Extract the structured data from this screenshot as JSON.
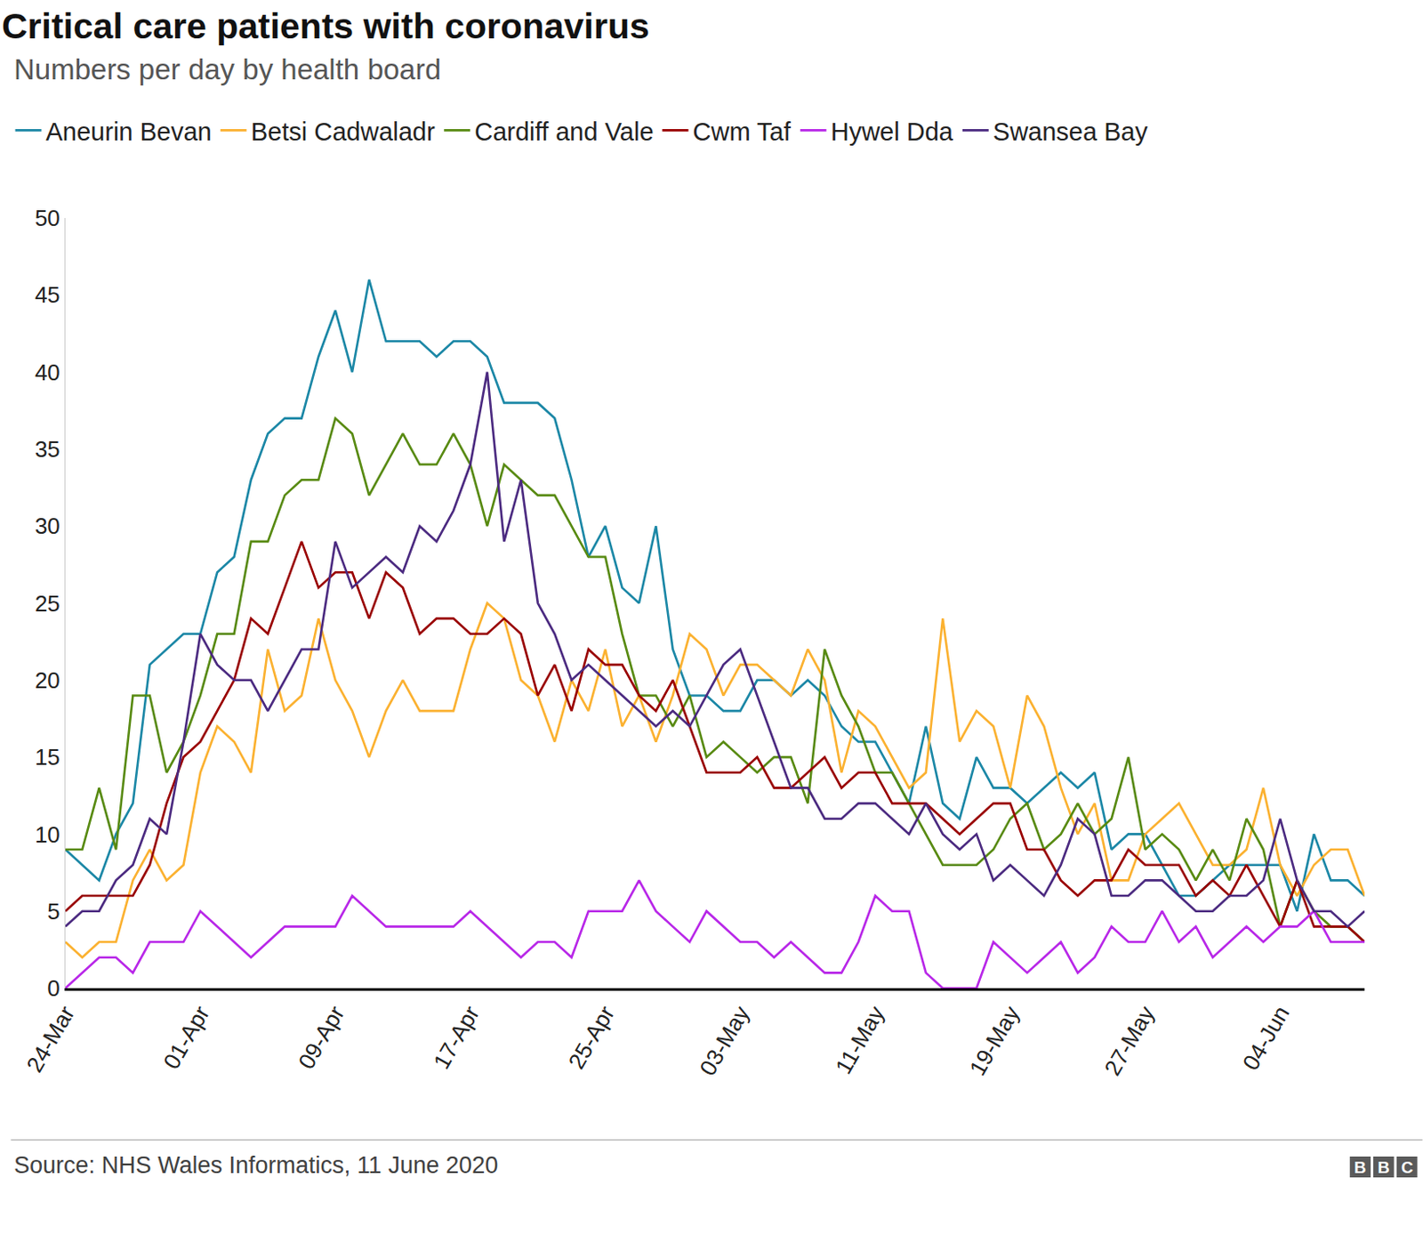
{
  "chart_data": {
    "type": "line",
    "title": "Critical care patients with coronavirus",
    "subtitle": "Numbers per day by health board",
    "source": "Source: NHS Wales Informatics, 11 June 2020",
    "logo": "BBC",
    "categories": [
      "24-Mar",
      null,
      null,
      null,
      null,
      null,
      null,
      null,
      "01-Apr",
      null,
      null,
      null,
      null,
      null,
      null,
      null,
      "09-Apr",
      null,
      null,
      null,
      null,
      null,
      null,
      null,
      "17-Apr",
      null,
      null,
      null,
      null,
      null,
      null,
      null,
      "25-Apr",
      null,
      null,
      null,
      null,
      null,
      null,
      null,
      "03-May",
      null,
      null,
      null,
      null,
      null,
      null,
      null,
      "11-May",
      null,
      null,
      null,
      null,
      null,
      null,
      null,
      "19-May",
      null,
      null,
      null,
      null,
      null,
      null,
      null,
      "27-May",
      null,
      null,
      null,
      null,
      null,
      null,
      null,
      "04-Jun",
      null,
      null,
      null,
      null,
      null
    ],
    "series": [
      {
        "name": "Aneurin Bevan",
        "color": "#1b87a6",
        "values": [
          9,
          8,
          7,
          10,
          12,
          21,
          22,
          23,
          23,
          27,
          28,
          33,
          36,
          37,
          37,
          41,
          44,
          40,
          46,
          42,
          42,
          42,
          41,
          42,
          42,
          41,
          38,
          38,
          38,
          37,
          33,
          28,
          30,
          26,
          25,
          30,
          22,
          19,
          19,
          18,
          18,
          20,
          20,
          19,
          20,
          19,
          17,
          16,
          16,
          14,
          12,
          17,
          12,
          11,
          15,
          13,
          13,
          12,
          13,
          14,
          13,
          14,
          9,
          10,
          10,
          8,
          6,
          6,
          7,
          8,
          8,
          8,
          8,
          5,
          10,
          7,
          7,
          6
        ]
      },
      {
        "name": "Betsi Cadwaladr",
        "color": "#fbb130",
        "values": [
          3,
          2,
          3,
          3,
          7,
          9,
          7,
          8,
          14,
          17,
          16,
          14,
          22,
          18,
          19,
          24,
          20,
          18,
          15,
          18,
          20,
          18,
          18,
          18,
          22,
          25,
          24,
          20,
          19,
          16,
          20,
          18,
          22,
          17,
          19,
          16,
          19,
          23,
          22,
          19,
          21,
          21,
          20,
          19,
          22,
          20,
          14,
          18,
          17,
          15,
          13,
          14,
          24,
          16,
          18,
          17,
          13,
          19,
          17,
          13,
          10,
          12,
          7,
          7,
          10,
          11,
          12,
          10,
          8,
          8,
          9,
          13,
          8,
          6,
          8,
          9,
          9,
          6
        ]
      },
      {
        "name": "Cardiff and Vale",
        "color": "#588a12",
        "values": [
          9,
          9,
          13,
          9,
          19,
          19,
          14,
          16,
          19,
          23,
          23,
          29,
          29,
          32,
          33,
          33,
          37,
          36,
          32,
          34,
          36,
          34,
          34,
          36,
          34,
          30,
          34,
          33,
          32,
          32,
          30,
          28,
          28,
          23,
          19,
          19,
          17,
          19,
          15,
          16,
          15,
          14,
          15,
          15,
          12,
          22,
          19,
          17,
          14,
          14,
          12,
          10,
          8,
          8,
          8,
          9,
          11,
          12,
          9,
          10,
          12,
          10,
          11,
          15,
          9,
          10,
          9,
          7,
          9,
          7,
          11,
          9,
          4,
          7,
          5,
          4,
          4,
          3
        ]
      },
      {
        "name": "Cwm Taf",
        "color": "#990000",
        "values": [
          5,
          6,
          6,
          6,
          6,
          8,
          12,
          15,
          16,
          18,
          20,
          24,
          23,
          26,
          29,
          26,
          27,
          27,
          24,
          27,
          26,
          23,
          24,
          24,
          23,
          23,
          24,
          23,
          19,
          21,
          18,
          22,
          21,
          21,
          19,
          18,
          20,
          17,
          14,
          14,
          14,
          15,
          13,
          13,
          14,
          15,
          13,
          14,
          14,
          12,
          12,
          12,
          11,
          10,
          11,
          12,
          12,
          9,
          9,
          7,
          6,
          7,
          7,
          9,
          8,
          8,
          8,
          6,
          7,
          6,
          8,
          6,
          4,
          7,
          4,
          4,
          4,
          3
        ]
      },
      {
        "name": "Hywel Dda",
        "color": "#b827e8",
        "values": [
          0,
          1,
          2,
          2,
          1,
          3,
          3,
          3,
          5,
          4,
          3,
          2,
          3,
          4,
          4,
          4,
          4,
          6,
          5,
          4,
          4,
          4,
          4,
          4,
          5,
          4,
          3,
          2,
          3,
          3,
          2,
          5,
          5,
          5,
          7,
          5,
          4,
          3,
          5,
          4,
          3,
          3,
          2,
          3,
          2,
          1,
          1,
          3,
          6,
          5,
          5,
          1,
          0,
          0,
          0,
          3,
          2,
          1,
          2,
          3,
          1,
          2,
          4,
          3,
          3,
          5,
          3,
          4,
          2,
          3,
          4,
          3,
          4,
          4,
          5,
          3,
          3,
          3
        ]
      },
      {
        "name": "Swansea Bay",
        "color": "#4b2a80",
        "values": [
          4,
          5,
          5,
          7,
          8,
          11,
          10,
          16,
          23,
          21,
          20,
          20,
          18,
          20,
          22,
          22,
          29,
          26,
          27,
          28,
          27,
          30,
          29,
          31,
          34,
          40,
          29,
          33,
          25,
          23,
          20,
          21,
          20,
          19,
          18,
          17,
          18,
          17,
          19,
          21,
          22,
          19,
          16,
          13,
          13,
          11,
          11,
          12,
          12,
          11,
          10,
          12,
          10,
          9,
          10,
          7,
          8,
          7,
          6,
          8,
          11,
          10,
          6,
          6,
          7,
          7,
          6,
          5,
          5,
          6,
          6,
          7,
          11,
          7,
          5,
          5,
          4,
          5
        ]
      }
    ],
    "ylim": [
      0,
      50
    ],
    "yticks": [
      0,
      5,
      10,
      15,
      20,
      25,
      30,
      35,
      40,
      45,
      50
    ],
    "grid": false,
    "legend": "top"
  }
}
